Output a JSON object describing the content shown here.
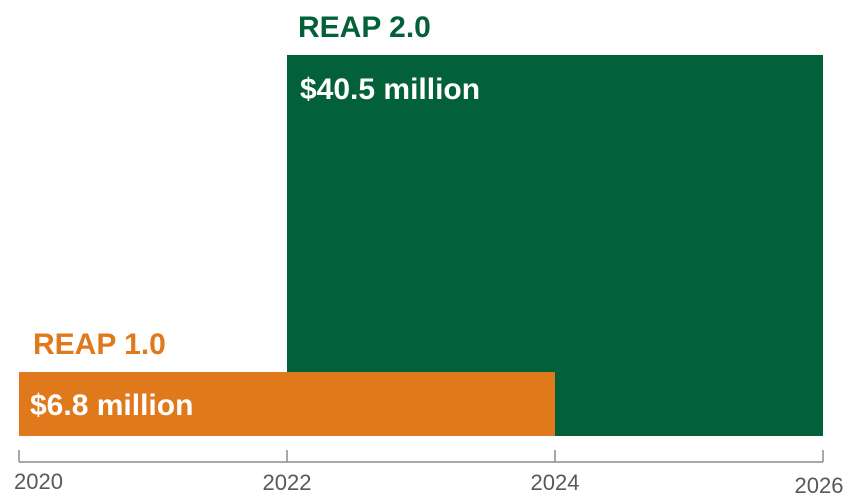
{
  "chart_data": {
    "type": "bar",
    "orientation": "horizontal-timeline",
    "title": "",
    "xlabel": "",
    "ylabel": "",
    "x_range": [
      2020,
      2026
    ],
    "ticks": [
      {
        "value": 2020,
        "label": "2020"
      },
      {
        "value": 2022,
        "label": "2022"
      },
      {
        "value": 2024,
        "label": "2024"
      },
      {
        "value": 2026,
        "label": "2026"
      }
    ],
    "value_range": [
      0,
      40.5
    ],
    "grid": false,
    "legend": "none",
    "series": [
      {
        "name": "REAP 1.0",
        "start": 2020,
        "end": 2024,
        "value": 6.8,
        "value_label": "$6.8 million",
        "color": "#E0781C"
      },
      {
        "name": "REAP 2.0",
        "start": 2022,
        "end": 2026,
        "value": 40.5,
        "value_label": "$40.5 million",
        "color": "#03613A"
      }
    ]
  }
}
